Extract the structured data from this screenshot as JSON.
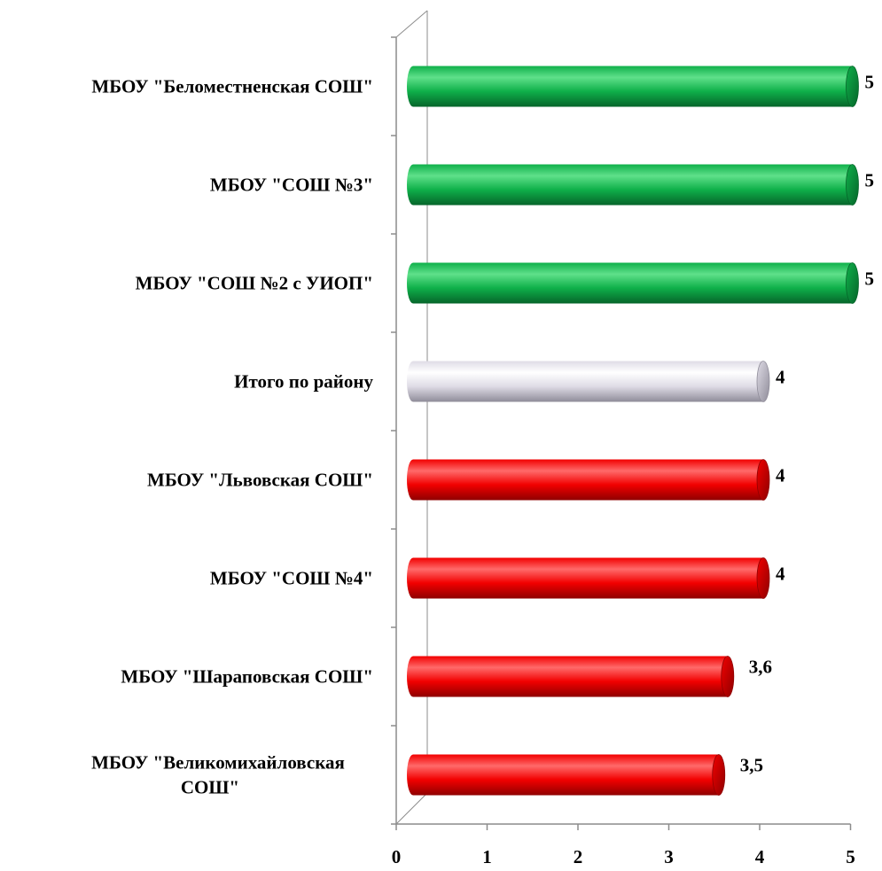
{
  "chart_data": {
    "type": "bar",
    "orientation": "horizontal",
    "categories": [
      "МБОУ \"Беломестненская СОШ\"",
      "МБОУ \"СОШ №3\"",
      "МБОУ \"СОШ №2 с УИОП\"",
      "Итого по району",
      "МБОУ \"Львовская СОШ\"",
      "МБОУ \"СОШ №4\"",
      "МБОУ \"Шараповская СОШ\"",
      "МБОУ \"Великомихайловская СОШ\""
    ],
    "category_lines": [
      [
        "МБОУ \"Беломестненская СОШ\""
      ],
      [
        "МБОУ \"СОШ №3\""
      ],
      [
        "МБОУ \"СОШ №2 с УИОП\""
      ],
      [
        "Итого по району"
      ],
      [
        "МБОУ \"Львовская СОШ\""
      ],
      [
        "МБОУ \"СОШ №4\""
      ],
      [
        "МБОУ \"Шараповская СОШ\""
      ],
      [
        "МБОУ \"Великомихайловская",
        "СОШ\""
      ]
    ],
    "values": [
      5,
      5,
      5,
      4,
      4,
      4,
      3.6,
      3.5
    ],
    "value_labels": [
      "5",
      "5",
      "5",
      "4",
      "4",
      "4",
      "3,6",
      "3,5"
    ],
    "bar_colors": [
      "green",
      "green",
      "green",
      "gray",
      "red",
      "red",
      "red",
      "red"
    ],
    "xlim": [
      0,
      5
    ],
    "x_ticks": [
      "0",
      "1",
      "2",
      "3",
      "4",
      "5"
    ],
    "grid": false,
    "legend": "none",
    "style": "3d-cylinder"
  },
  "colors": {
    "green": {
      "light": "#5fe08a",
      "mid": "#0fb04a",
      "dark": "#06652a"
    },
    "red": {
      "light": "#ff6a6a",
      "mid": "#f20000",
      "dark": "#8f0000"
    },
    "gray": {
      "light": "#ffffff",
      "mid": "#dfdce6",
      "dark": "#8f8c99"
    },
    "axis": "#8c8c8c"
  }
}
